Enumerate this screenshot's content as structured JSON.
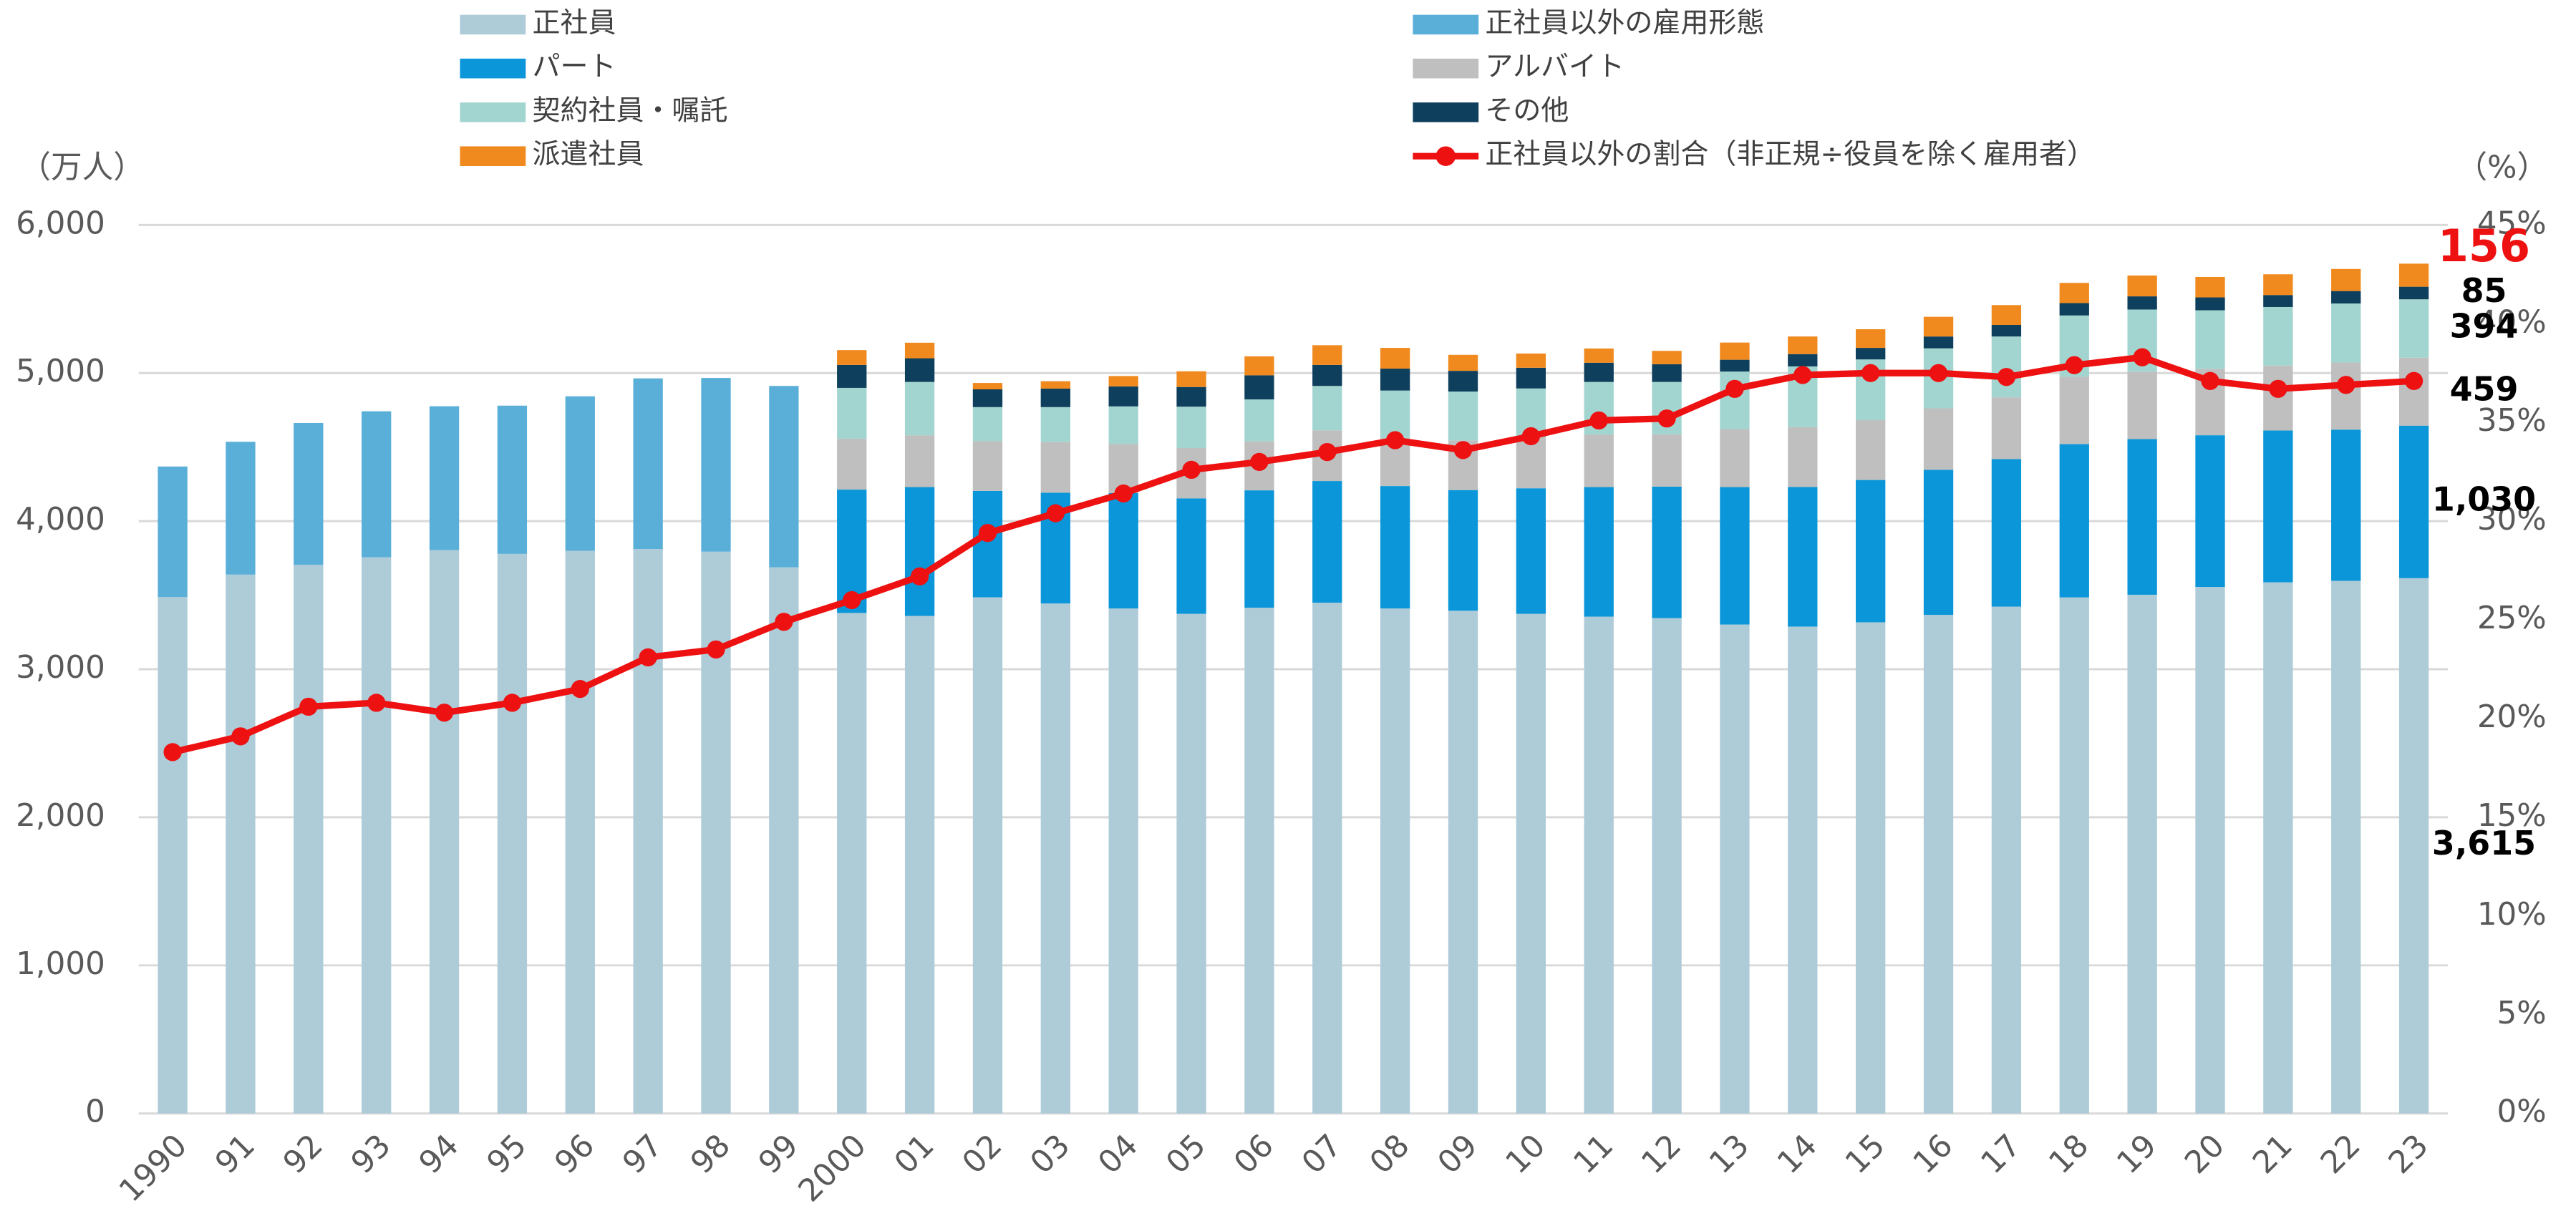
{
  "chart_data": {
    "type": "bar",
    "stacked": true,
    "y_label": "（万人）",
    "y2_label": "（%）",
    "categories": [
      "1990",
      "91",
      "92",
      "93",
      "94",
      "95",
      "96",
      "97",
      "98",
      "99",
      "2000",
      "01",
      "02",
      "03",
      "04",
      "05",
      "06",
      "07",
      "08",
      "09",
      "10",
      "11",
      "12",
      "13",
      "14",
      "15",
      "16",
      "17",
      "18",
      "19",
      "20",
      "21",
      "22",
      "23"
    ],
    "ylim": [
      0,
      6000
    ],
    "yticks": [
      {
        "value": 0,
        "label": "0"
      },
      {
        "value": 1000,
        "label": "1,000"
      },
      {
        "value": 2000,
        "label": "2,000"
      },
      {
        "value": 3000,
        "label": "3,000"
      },
      {
        "value": 4000,
        "label": "4,000"
      },
      {
        "value": 5000,
        "label": "5,000"
      },
      {
        "value": 6000,
        "label": "6,000"
      }
    ],
    "y2lim": [
      0,
      45
    ],
    "y2ticks": [
      {
        "value": 0,
        "label": "0%"
      },
      {
        "value": 5,
        "label": "5%"
      },
      {
        "value": 10,
        "label": "10%"
      },
      {
        "value": 15,
        "label": "15%"
      },
      {
        "value": 20,
        "label": "20%"
      },
      {
        "value": 25,
        "label": "25%"
      },
      {
        "value": 30,
        "label": "30%"
      },
      {
        "value": 35,
        "label": "35%"
      },
      {
        "value": 40,
        "label": "40%"
      },
      {
        "value": 45,
        "label": "45%"
      }
    ],
    "grid": true,
    "series": [
      {
        "name": "正社員",
        "color": "#aecbd8",
        "values": [
          3488,
          3639,
          3705,
          3756,
          3805,
          3779,
          3800,
          3812,
          3794,
          3688,
          3380,
          3360,
          3486,
          3444,
          3410,
          3374,
          3415,
          3449,
          3410,
          3395,
          3374,
          3355,
          3345,
          3302,
          3288,
          3317,
          3367,
          3423,
          3485,
          3503,
          3556,
          3587,
          3597,
          3615
        ],
        "value_labels": [
          null,
          null,
          null,
          null,
          null,
          null,
          null,
          null,
          null,
          null,
          null,
          null,
          null,
          null,
          null,
          null,
          null,
          null,
          null,
          null,
          null,
          null,
          null,
          null,
          null,
          null,
          null,
          null,
          null,
          null,
          null,
          null,
          null,
          "3,615"
        ]
      },
      {
        "name": "正社員以外の雇用形態",
        "color": "#5aafd9",
        "values": [
          881,
          897,
          958,
          986,
          971,
          1001,
          1043,
          1152,
          1173,
          1225,
          null,
          null,
          null,
          null,
          null,
          null,
          null,
          null,
          null,
          null,
          null,
          null,
          null,
          null,
          null,
          null,
          null,
          null,
          null,
          null,
          null,
          null,
          null,
          null
        ]
      },
      {
        "name": "パート",
        "color": "#0a96d8",
        "values": [
          null,
          null,
          null,
          null,
          null,
          null,
          null,
          null,
          null,
          null,
          833,
          870,
          718,
          748,
          780,
          780,
          793,
          822,
          827,
          815,
          848,
          875,
          888,
          928,
          943,
          961,
          980,
          996,
          1035,
          1051,
          1024,
          1025,
          1021,
          1030
        ],
        "value_labels": [
          null,
          null,
          null,
          null,
          null,
          null,
          null,
          null,
          null,
          null,
          null,
          null,
          null,
          null,
          null,
          null,
          null,
          null,
          null,
          null,
          null,
          null,
          null,
          null,
          null,
          null,
          null,
          null,
          null,
          null,
          null,
          null,
          null,
          "1,030"
        ]
      },
      {
        "name": "アルバイト",
        "color": "#bfbfbf",
        "values": [
          null,
          null,
          null,
          null,
          null,
          null,
          null,
          null,
          null,
          null,
          344,
          350,
          336,
          342,
          330,
          340,
          331,
          342,
          325,
          335,
          344,
          355,
          353,
          392,
          404,
          404,
          415,
          417,
          455,
          456,
          449,
          439,
          453,
          459
        ],
        "value_labels": [
          null,
          null,
          null,
          null,
          null,
          null,
          null,
          null,
          null,
          null,
          null,
          null,
          null,
          null,
          null,
          null,
          null,
          null,
          null,
          null,
          null,
          null,
          null,
          null,
          null,
          null,
          null,
          null,
          null,
          null,
          null,
          null,
          null,
          "459"
        ]
      },
      {
        "name": "契約社員・嘱託",
        "color": "#a3d5d0",
        "values": [
          null,
          null,
          null,
          null,
          null,
          null,
          null,
          null,
          null,
          null,
          343,
          360,
          230,
          236,
          255,
          279,
          283,
          300,
          320,
          330,
          330,
          355,
          354,
          388,
          410,
          410,
          405,
          411,
          414,
          419,
          395,
          395,
          399,
          394
        ],
        "value_labels": [
          null,
          null,
          null,
          null,
          null,
          null,
          null,
          null,
          null,
          null,
          null,
          null,
          null,
          null,
          null,
          null,
          null,
          null,
          null,
          null,
          null,
          null,
          null,
          null,
          null,
          null,
          null,
          null,
          null,
          null,
          null,
          null,
          null,
          "394"
        ]
      },
      {
        "name": "その他",
        "color": "#0e3f5c",
        "values": [
          null,
          null,
          null,
          null,
          null,
          null,
          null,
          null,
          null,
          null,
          155,
          160,
          120,
          125,
          135,
          133,
          163,
          142,
          148,
          140,
          140,
          130,
          120,
          80,
          83,
          78,
          80,
          78,
          84,
          89,
          87,
          81,
          84,
          85
        ],
        "value_labels": [
          null,
          null,
          null,
          null,
          null,
          null,
          null,
          null,
          null,
          null,
          null,
          null,
          null,
          null,
          null,
          null,
          null,
          null,
          null,
          null,
          null,
          null,
          null,
          null,
          null,
          null,
          null,
          null,
          null,
          null,
          null,
          null,
          null,
          "85"
        ]
      },
      {
        "name": "派遣社員",
        "color": "#f08a1e",
        "values": [
          null,
          null,
          null,
          null,
          null,
          null,
          null,
          null,
          null,
          null,
          100,
          105,
          43,
          50,
          70,
          106,
          128,
          133,
          140,
          108,
          96,
          96,
          90,
          116,
          119,
          126,
          133,
          134,
          136,
          141,
          138,
          140,
          149,
          156
        ],
        "value_labels": [
          null,
          null,
          null,
          null,
          null,
          null,
          null,
          null,
          null,
          null,
          null,
          null,
          null,
          null,
          null,
          null,
          null,
          null,
          null,
          null,
          null,
          null,
          null,
          null,
          null,
          null,
          null,
          null,
          null,
          null,
          null,
          null,
          null,
          "156"
        ]
      },
      {
        "name": "正社員以外の割合（非正規÷役員を除く雇用者）",
        "color": "#ee1111",
        "type": "line",
        "axis": "y2",
        "values": [
          18.3,
          19.1,
          20.6,
          20.8,
          20.3,
          20.8,
          21.5,
          23.1,
          23.5,
          24.9,
          26.0,
          27.2,
          29.4,
          30.4,
          31.4,
          32.6,
          33.0,
          33.5,
          34.1,
          33.6,
          34.3,
          35.1,
          35.2,
          36.7,
          37.4,
          37.5,
          37.5,
          37.3,
          37.9,
          38.3,
          37.1,
          36.7,
          36.9,
          37.1
        ]
      }
    ]
  }
}
